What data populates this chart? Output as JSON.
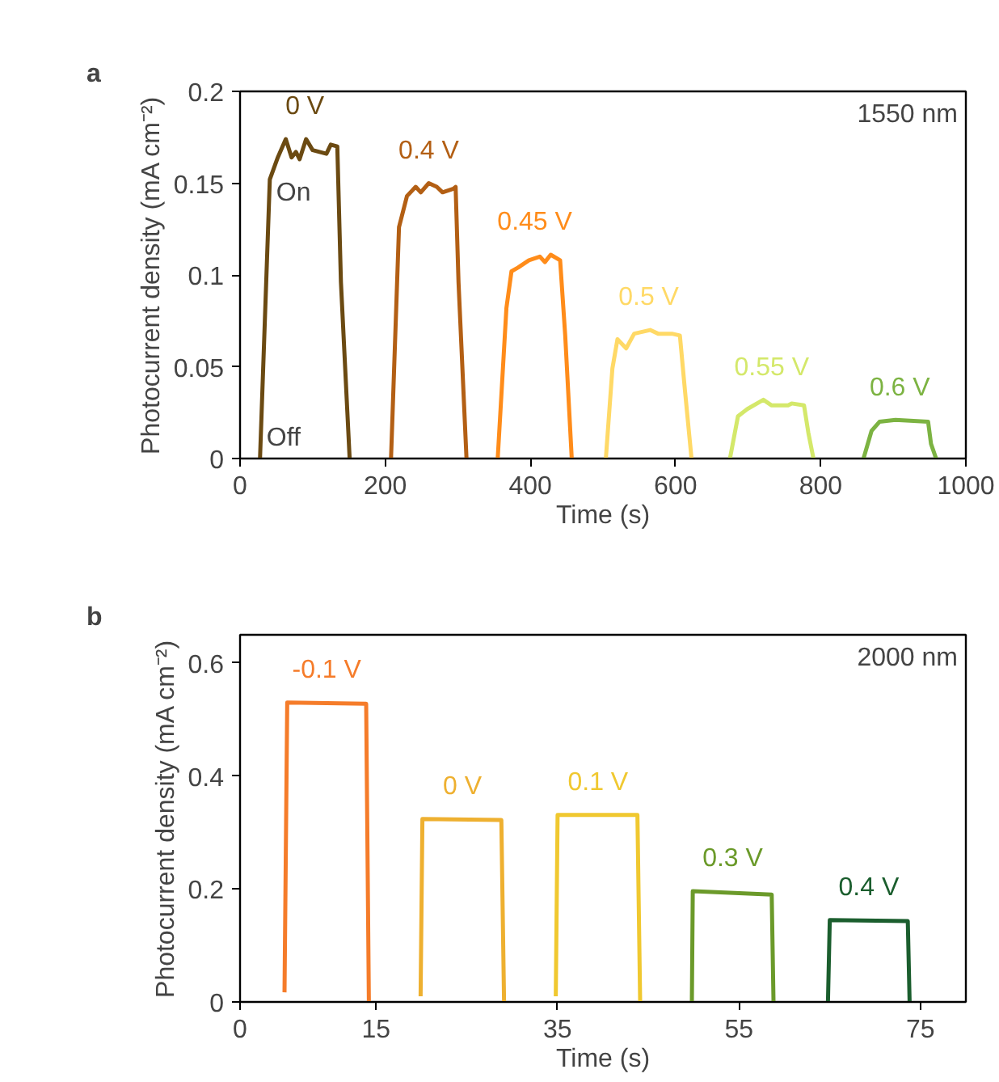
{
  "chart_data": [
    {
      "type": "line",
      "title": "a",
      "xlabel": "Time (s)",
      "ylabel": "Photocurrent density (mA cm⁻²)",
      "xlim": [
        0,
        1000
      ],
      "ylim": [
        0,
        0.2
      ],
      "xticks": [
        0,
        200,
        400,
        600,
        800,
        1000
      ],
      "yticks": [
        0,
        0.05,
        0.1,
        0.15,
        0.2
      ],
      "grid": false,
      "legend": false,
      "marker": "none",
      "line_style": "solid",
      "annotations": [
        "1550 nm",
        "On",
        "Off"
      ],
      "series": [
        {
          "name": "0 V",
          "color": "#6b4a12",
          "x": [
            27.5,
            41,
            52,
            63,
            71,
            77,
            82,
            91,
            100,
            119,
            125,
            134,
            139,
            151
          ],
          "values": [
            0,
            0.152,
            0.164,
            0.174,
            0.164,
            0.167,
            0.163,
            0.174,
            0.168,
            0.166,
            0.171,
            0.17,
            0.096,
            0
          ]
        },
        {
          "name": "0.4 V",
          "color": "#b35f14",
          "x": [
            208,
            219,
            230,
            242,
            249,
            260,
            271,
            279,
            294,
            297,
            301,
            312
          ],
          "values": [
            0,
            0.126,
            0.143,
            0.148,
            0.145,
            0.15,
            0.148,
            0.145,
            0.147,
            0.148,
            0.096,
            0
          ]
        },
        {
          "name": "0.45 V",
          "color": "#ff8c1a",
          "x": [
            355,
            367,
            374,
            383,
            398,
            413,
            420,
            428,
            441,
            448,
            457
          ],
          "values": [
            0,
            0.082,
            0.102,
            0.104,
            0.108,
            0.11,
            0.107,
            0.111,
            0.108,
            0.067,
            0
          ]
        },
        {
          "name": "0.5 V",
          "color": "#ffd966",
          "x": [
            504,
            513,
            520,
            532,
            543,
            565,
            576,
            595,
            606,
            613,
            622
          ],
          "values": [
            0,
            0.049,
            0.065,
            0.06,
            0.068,
            0.07,
            0.068,
            0.068,
            0.067,
            0.037,
            0
          ]
        },
        {
          "name": "0.55 V",
          "color": "#d4e86a",
          "x": [
            675,
            686,
            699,
            721,
            732,
            755,
            760,
            777,
            783,
            790
          ],
          "values": [
            0,
            0.023,
            0.027,
            0.032,
            0.029,
            0.029,
            0.03,
            0.029,
            0.014,
            0
          ]
        },
        {
          "name": "0.6 V",
          "color": "#7cb342",
          "x": [
            859,
            870,
            881,
            903,
            948,
            952,
            959
          ],
          "values": [
            0,
            0.015,
            0.02,
            0.021,
            0.02,
            0.008,
            0
          ]
        }
      ]
    },
    {
      "type": "line",
      "title": "b",
      "xlabel": "Time (s)",
      "ylabel": "Photocurrent density (mA cm⁻²)",
      "xlim": [
        0,
        80
      ],
      "ylim": [
        0,
        0.65
      ],
      "xticks": [
        0,
        15,
        35,
        55,
        75
      ],
      "yticks": [
        0,
        0.2,
        0.4,
        0.6
      ],
      "grid": false,
      "legend": false,
      "marker": "none",
      "line_style": "solid",
      "annotations": [
        "2000 nm"
      ],
      "series": [
        {
          "name": "-0.1 V",
          "color": "#f57c2a",
          "x": [
            4.9,
            5.2,
            13.9,
            14.2
          ],
          "values": [
            0.017,
            0.53,
            0.528,
            0
          ]
        },
        {
          "name": "0 V",
          "color": "#eeb030",
          "x": [
            19.9,
            20.1,
            28.8,
            29.1
          ],
          "values": [
            0.01,
            0.324,
            0.322,
            0
          ]
        },
        {
          "name": "0.1 V",
          "color": "#f0c830",
          "x": [
            34.8,
            35,
            43.8,
            44.1
          ],
          "values": [
            0.01,
            0.331,
            0.331,
            0
          ]
        },
        {
          "name": "0.3 V",
          "color": "#6b9a2a",
          "x": [
            49.8,
            49.9,
            58.6,
            58.8
          ],
          "values": [
            0,
            0.196,
            0.19,
            0
          ]
        },
        {
          "name": "0.4 V",
          "color": "#1b5e2e",
          "x": [
            64.8,
            65,
            73.6,
            73.8
          ],
          "values": [
            0,
            0.145,
            0.143,
            0
          ]
        }
      ]
    }
  ]
}
